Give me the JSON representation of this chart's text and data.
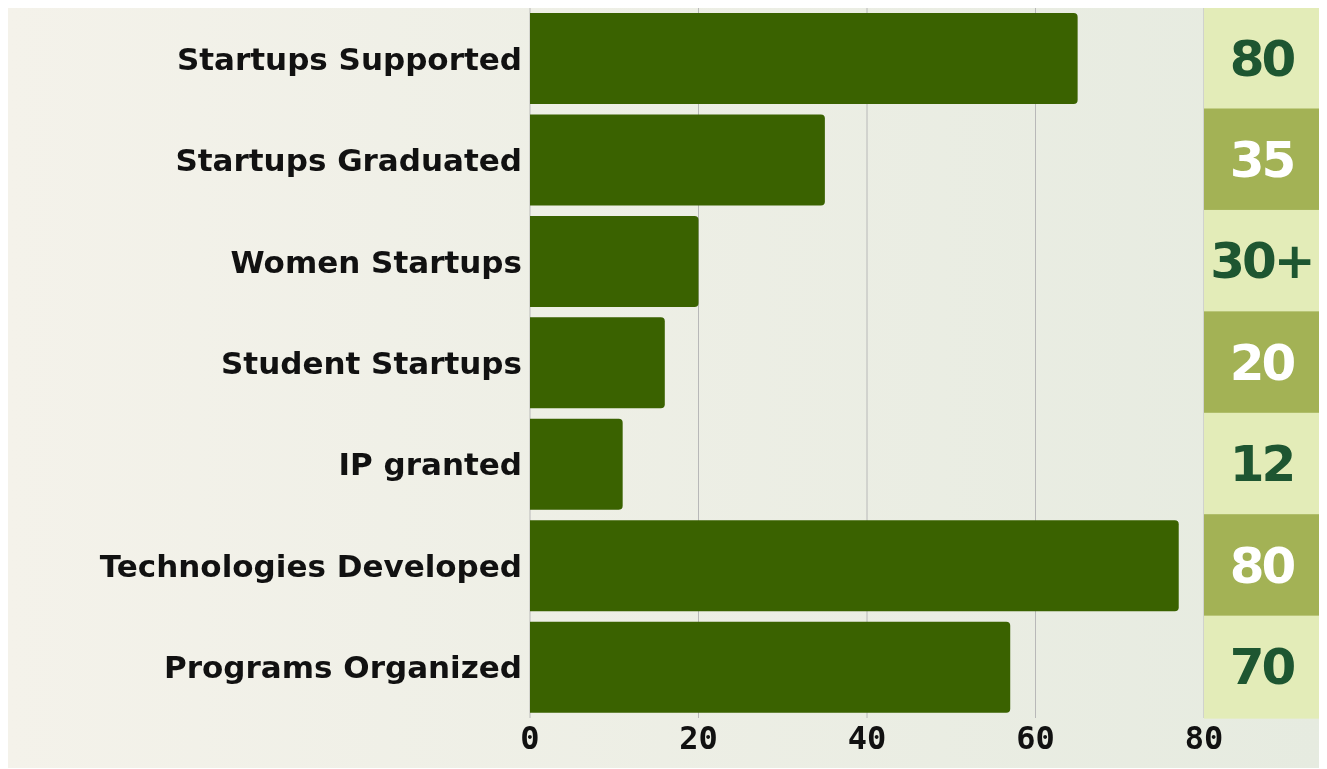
{
  "chart_data": {
    "type": "bar",
    "orientation": "horizontal",
    "categories": [
      "Startups Supported",
      "Startups Graduated",
      "Women Startups",
      "Student Startups",
      "IP granted",
      "Technologies Developed",
      "Programs Organized"
    ],
    "values": [
      65,
      35,
      20,
      16,
      11,
      77,
      57
    ],
    "annotations": [
      "80",
      "35",
      "30+",
      "20",
      "12",
      "80",
      "70"
    ],
    "color": "#3a6200",
    "xlim": [
      0,
      80
    ],
    "xticks": [
      0,
      20,
      40,
      60,
      80
    ],
    "grid": "x"
  }
}
